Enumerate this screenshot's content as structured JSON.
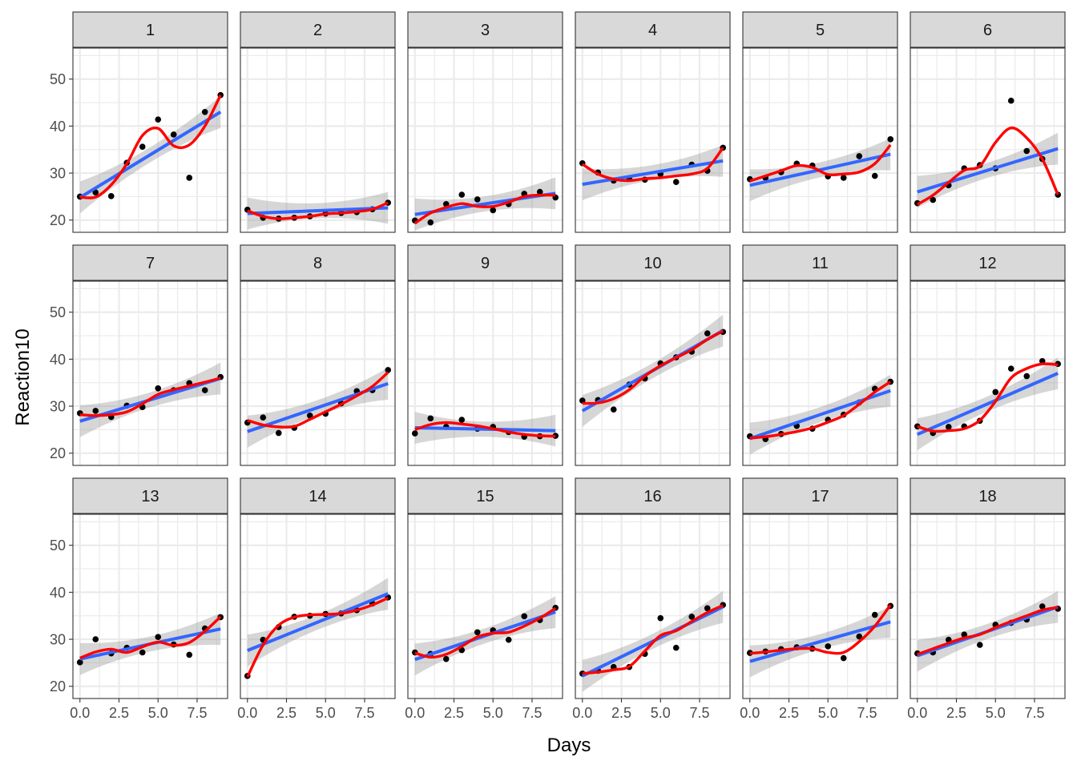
{
  "chart_data": {
    "type": "scatter",
    "layout": "facet-grid",
    "xlabel": "Days",
    "ylabel": "Reaction10",
    "xlim": [
      -0.45,
      9.45
    ],
    "ylim": [
      17.4,
      56.6
    ],
    "x_ticks": [
      0,
      2.5,
      5,
      7.5
    ],
    "x_tick_labels": [
      "0.0",
      "2.5",
      "5.0",
      "7.5"
    ],
    "y_ticks": [
      20,
      30,
      40,
      50
    ],
    "y_tick_labels": [
      "20",
      "30",
      "40",
      "50"
    ],
    "grid": true,
    "colors": {
      "points": "#000000",
      "linear_fit": "#3366ff",
      "smooth_fit": "#ff0000",
      "confidence_band": "#999999",
      "strip_fill": "#d9d9d9",
      "strip_border": "#333333",
      "grid_line": "#ebebeb"
    },
    "series": [
      {
        "name": "Reaction10",
        "kind": "points"
      },
      {
        "name": "lm",
        "kind": "linear fit with confidence band"
      },
      {
        "name": "loess",
        "kind": "smooth fit"
      }
    ],
    "x": [
      0,
      1,
      2,
      3,
      4,
      5,
      6,
      7,
      8,
      9
    ],
    "panels": [
      {
        "label": "1",
        "y": [
          25.0,
          25.9,
          25.1,
          32.2,
          35.6,
          41.4,
          38.2,
          29.0,
          43.0,
          46.6
        ],
        "linear": [
          24.8,
          43.0
        ],
        "smooth": [
          24.9,
          24.9,
          27.5,
          32.0,
          38.0,
          39.5,
          35.8,
          36.0,
          40.0,
          46.6
        ]
      },
      {
        "label": "2",
        "y": [
          22.2,
          20.5,
          20.3,
          20.5,
          20.8,
          21.4,
          21.5,
          21.7,
          22.3,
          23.7
        ],
        "linear": [
          21.4,
          22.6
        ],
        "smooth": [
          22.0,
          20.8,
          20.3,
          20.5,
          20.8,
          21.3,
          21.5,
          21.8,
          22.3,
          23.7
        ]
      },
      {
        "label": "3",
        "y": [
          19.9,
          19.5,
          23.4,
          25.4,
          24.4,
          22.1,
          23.4,
          25.6,
          26.0,
          24.8
        ],
        "linear": [
          21.2,
          25.7
        ],
        "smooth": [
          19.3,
          21.5,
          22.7,
          23.5,
          22.9,
          22.9,
          23.8,
          25.0,
          25.3,
          25.3
        ]
      },
      {
        "label": "4",
        "y": [
          32.1,
          30.1,
          28.4,
          28.8,
          28.6,
          29.8,
          28.1,
          31.8,
          30.5,
          35.4
        ],
        "linear": [
          27.6,
          32.6
        ],
        "smooth": [
          31.9,
          29.8,
          28.7,
          28.4,
          28.8,
          29.0,
          29.4,
          29.8,
          31.0,
          35.4
        ]
      },
      {
        "label": "5",
        "y": [
          28.7,
          29.0,
          30.2,
          32.0,
          31.6,
          29.3,
          29.0,
          33.6,
          29.4,
          37.2
        ],
        "linear": [
          27.4,
          34.0
        ],
        "smooth": [
          28.3,
          29.4,
          30.5,
          31.6,
          31.2,
          29.7,
          29.8,
          30.2,
          32.0,
          36.0
        ]
      },
      {
        "label": "6",
        "y": [
          23.6,
          24.3,
          27.4,
          31.0,
          31.7,
          31.0,
          45.4,
          34.7,
          33.0,
          25.4
        ],
        "linear": [
          26.0,
          35.2
        ],
        "smooth": [
          23.3,
          25.3,
          28.0,
          30.6,
          31.5,
          36.5,
          39.6,
          37.5,
          33.0,
          25.4
        ]
      },
      {
        "label": "7",
        "y": [
          28.5,
          29.0,
          27.7,
          30.1,
          29.8,
          33.8,
          33.4,
          34.9,
          33.4,
          36.2
        ],
        "linear": [
          26.8,
          35.9
        ],
        "smooth": [
          28.2,
          28.0,
          28.2,
          28.8,
          30.5,
          32.5,
          33.5,
          34.3,
          35.1,
          36.0
        ]
      },
      {
        "label": "8",
        "y": [
          26.5,
          27.6,
          24.3,
          25.4,
          28.0,
          28.4,
          30.6,
          33.2,
          33.4,
          37.7
        ],
        "linear": [
          24.6,
          34.8
        ],
        "smooth": [
          27.0,
          26.0,
          25.6,
          25.7,
          27.2,
          28.8,
          30.4,
          32.2,
          34.2,
          37.2
        ]
      },
      {
        "label": "9",
        "y": [
          24.2,
          27.4,
          25.6,
          27.1,
          25.2,
          25.6,
          24.5,
          23.5,
          23.6,
          23.7
        ],
        "linear": [
          25.4,
          24.8
        ],
        "smooth": [
          25.0,
          26.1,
          26.5,
          26.2,
          25.8,
          25.2,
          24.5,
          24.0,
          23.7,
          23.6
        ]
      },
      {
        "label": "10",
        "y": [
          31.2,
          31.3,
          29.3,
          34.6,
          35.9,
          39.1,
          40.4,
          41.6,
          45.5,
          45.8
        ],
        "linear": [
          29.0,
          46.1
        ],
        "smooth": [
          30.6,
          30.7,
          31.6,
          33.5,
          36.4,
          38.6,
          40.3,
          42.0,
          44.2,
          46.0
        ]
      },
      {
        "label": "11",
        "y": [
          23.6,
          23.0,
          24.1,
          25.8,
          25.2,
          27.1,
          28.2,
          30.8,
          33.7,
          35.2
        ],
        "linear": [
          23.1,
          33.3
        ],
        "smooth": [
          23.2,
          23.5,
          24.0,
          24.6,
          25.4,
          26.6,
          28.0,
          30.4,
          33.0,
          35.2
        ]
      },
      {
        "label": "12",
        "y": [
          25.7,
          24.3,
          25.6,
          25.7,
          26.9,
          33.0,
          38.0,
          36.4,
          39.6,
          39.0
        ],
        "linear": [
          24.0,
          37.0
        ],
        "smooth": [
          25.7,
          24.7,
          24.8,
          25.2,
          27.0,
          31.0,
          36.0,
          38.0,
          39.0,
          38.8
        ]
      },
      {
        "label": "13",
        "y": [
          25.1,
          30.0,
          27.0,
          28.2,
          27.2,
          30.5,
          28.9,
          26.7,
          32.3,
          34.7
        ],
        "linear": [
          25.8,
          32.2
        ],
        "smooth": [
          26.0,
          27.3,
          27.9,
          27.2,
          28.4,
          29.4,
          28.7,
          29.3,
          31.7,
          34.8
        ]
      },
      {
        "label": "14",
        "y": [
          22.2,
          29.9,
          32.6,
          34.8,
          35.0,
          35.4,
          35.5,
          36.2,
          37.6,
          38.9
        ],
        "linear": [
          27.6,
          39.7
        ],
        "smooth": [
          22.0,
          28.8,
          33.0,
          34.7,
          35.2,
          35.3,
          35.5,
          36.2,
          37.3,
          38.8
        ]
      },
      {
        "label": "15",
        "y": [
          27.2,
          26.9,
          25.8,
          27.7,
          31.5,
          31.9,
          29.9,
          34.9,
          34.1,
          36.7
        ],
        "linear": [
          25.7,
          35.8
        ],
        "smooth": [
          27.1,
          26.2,
          26.8,
          28.5,
          30.5,
          31.3,
          31.5,
          32.8,
          34.5,
          36.6
        ]
      },
      {
        "label": "16",
        "y": [
          22.7,
          23.3,
          24.1,
          24.1,
          26.9,
          34.5,
          28.2,
          34.8,
          36.6,
          37.3
        ],
        "linear": [
          22.2,
          36.9
        ],
        "smooth": [
          22.7,
          23.0,
          23.5,
          24.2,
          27.5,
          30.8,
          31.8,
          33.8,
          35.7,
          37.2
        ]
      },
      {
        "label": "17",
        "y": [
          27.1,
          27.4,
          27.9,
          28.3,
          28.0,
          28.5,
          26.0,
          30.6,
          35.2,
          37.1
        ],
        "linear": [
          25.3,
          33.7
        ],
        "smooth": [
          27.0,
          27.3,
          27.7,
          28.0,
          28.0,
          27.2,
          27.2,
          29.5,
          32.8,
          37.3
        ]
      },
      {
        "label": "18",
        "y": [
          27.0,
          27.2,
          29.9,
          31.0,
          28.8,
          33.1,
          33.5,
          34.2,
          37.0,
          36.5
        ],
        "linear": [
          26.5,
          36.9
        ],
        "smooth": [
          26.8,
          28.0,
          29.2,
          30.3,
          31.0,
          32.5,
          33.8,
          35.0,
          36.2,
          36.8
        ]
      }
    ]
  }
}
